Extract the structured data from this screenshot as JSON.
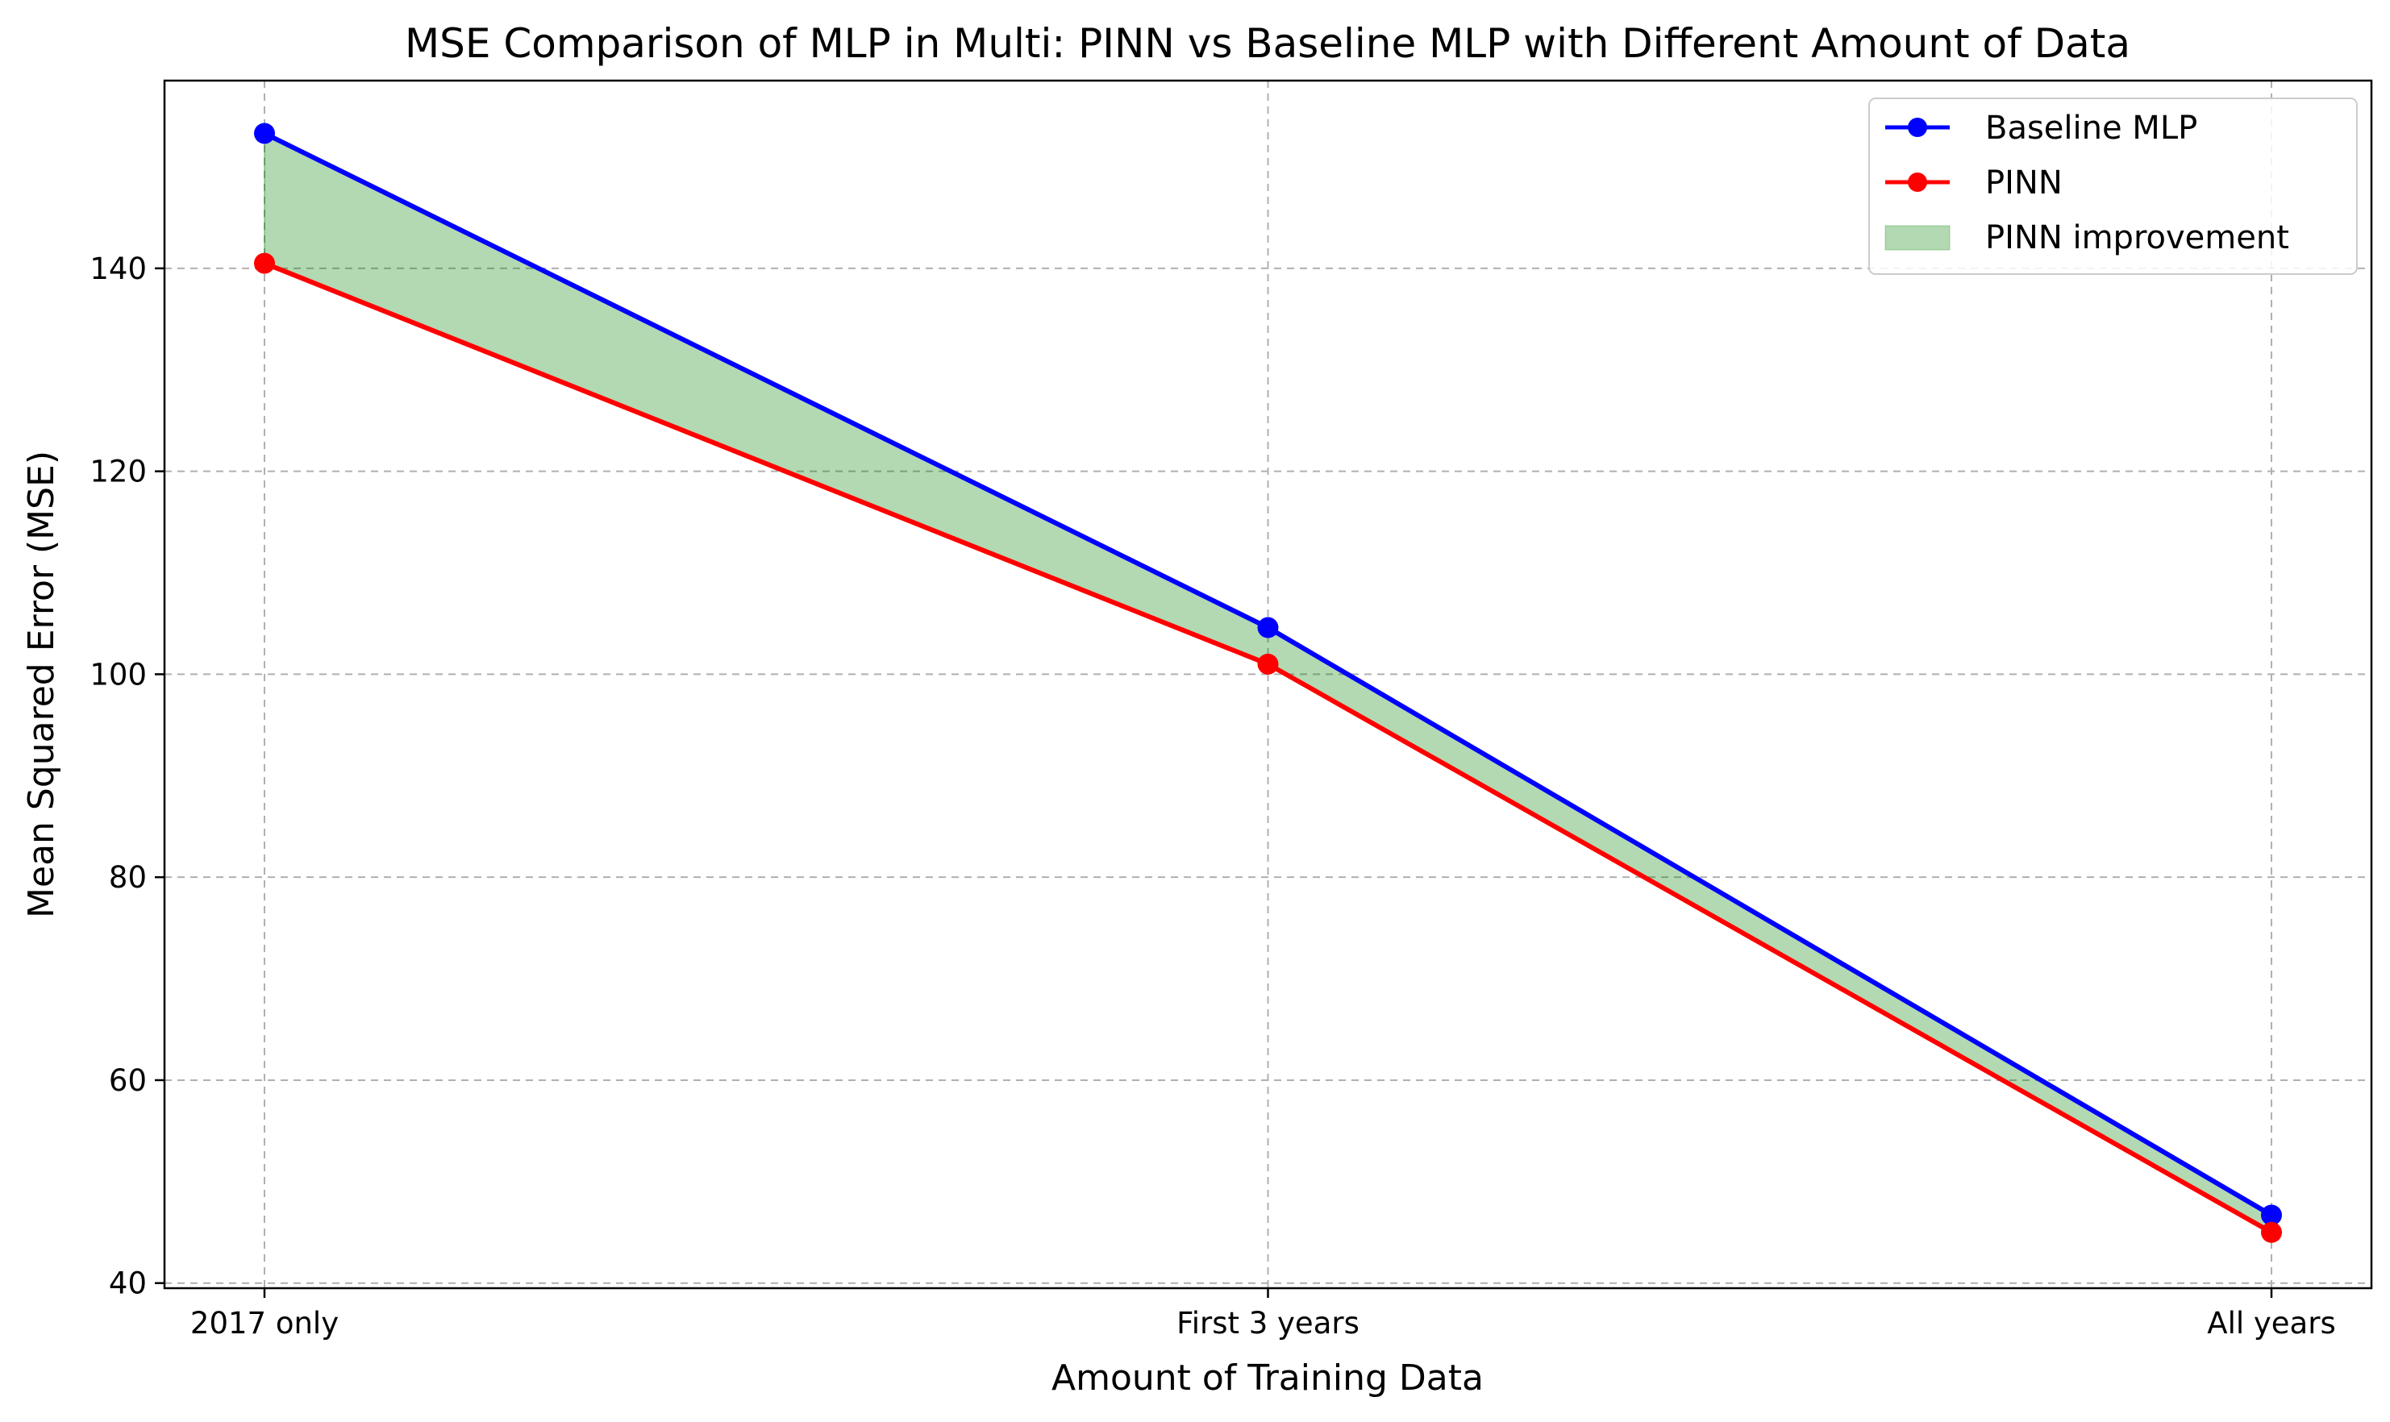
{
  "chart_data": {
    "type": "line",
    "title": "MSE Comparison of MLP in Multi: PINN vs Baseline MLP with Different Amount of Data",
    "xlabel": "Amount of Training Data",
    "ylabel": "Mean Squared Error (MSE)",
    "categories": [
      "2017 only",
      "First 3 years",
      "All years"
    ],
    "ylim": [
      39.5,
      158.5
    ],
    "yticks": [
      40,
      60,
      80,
      100,
      120,
      140
    ],
    "grid": true,
    "legend_position": "top-right",
    "series": [
      {
        "name": "Baseline MLP",
        "color": "#0000ff",
        "marker": "circle",
        "values": [
          153.3,
          104.6,
          46.7
        ]
      },
      {
        "name": "PINN",
        "color": "#ff0000",
        "marker": "circle",
        "values": [
          140.5,
          101.0,
          45.0
        ]
      }
    ],
    "fill_between": {
      "name": "PINN improvement",
      "color": "#008000",
      "alpha": 0.3,
      "upper_series": "Baseline MLP",
      "lower_series": "PINN"
    }
  }
}
